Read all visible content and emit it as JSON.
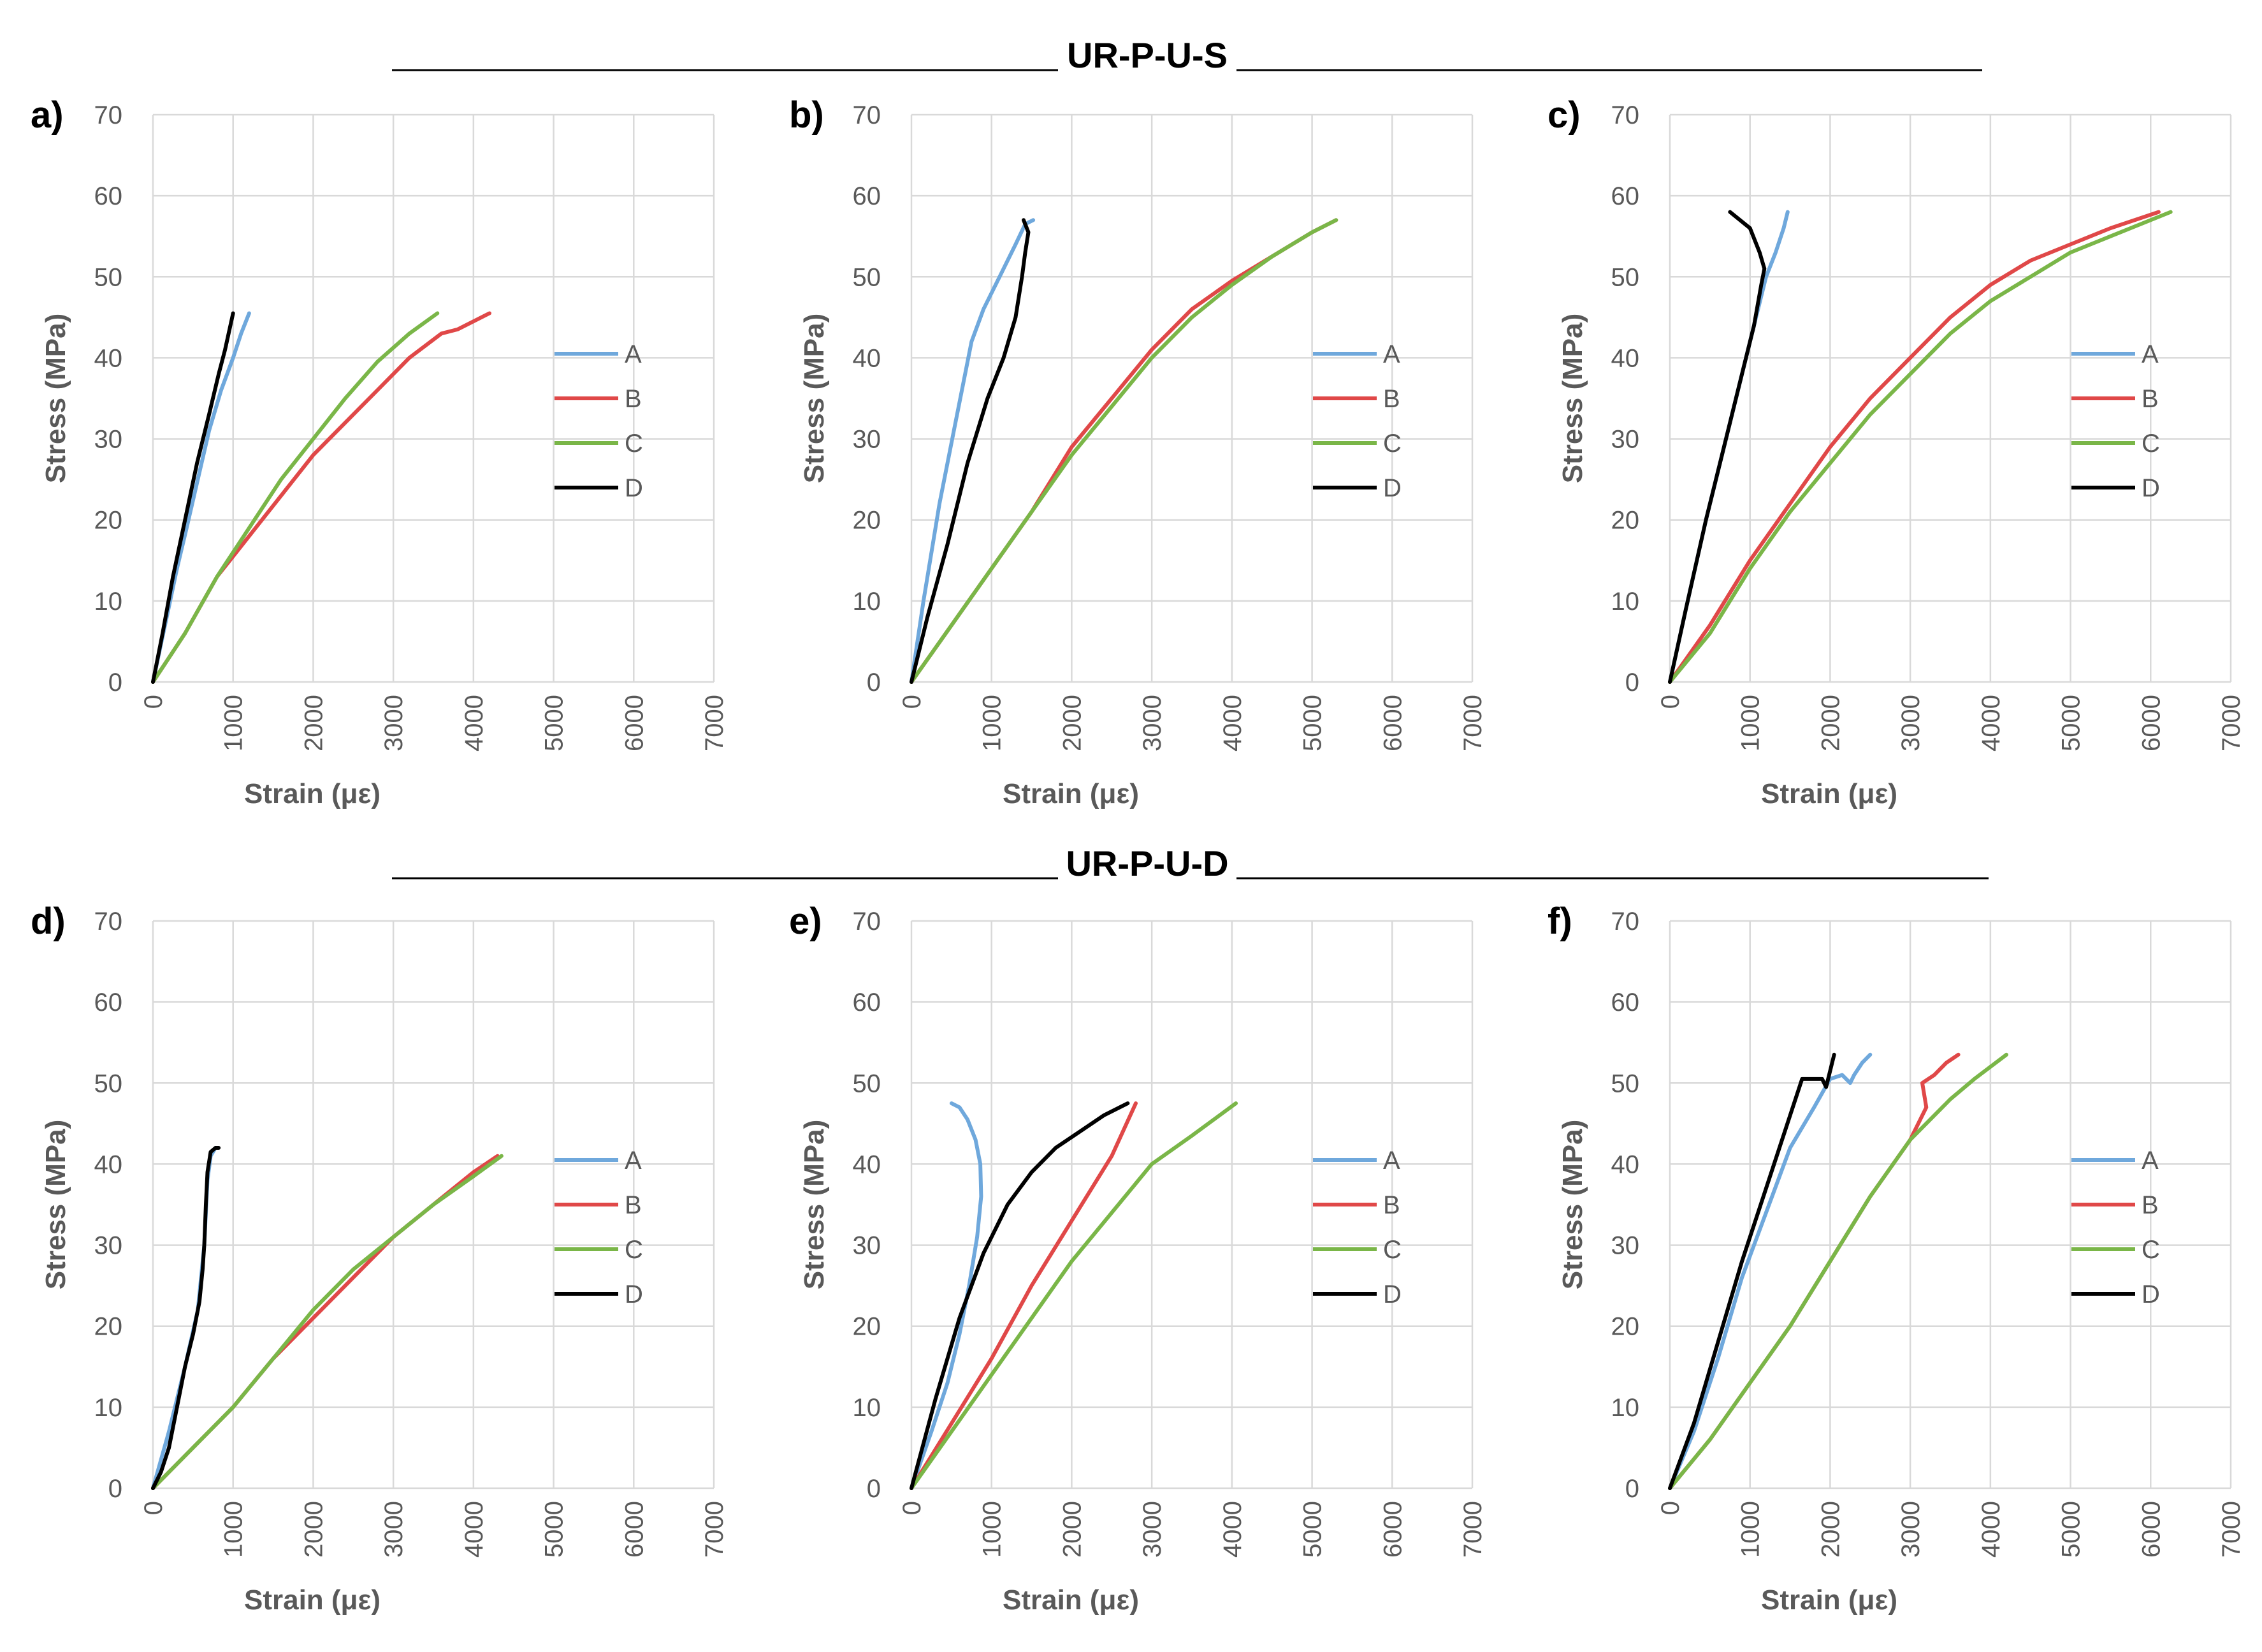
{
  "figure": {
    "groups": [
      {
        "title": "UR-P-U-S",
        "panels": [
          0,
          1,
          2
        ]
      },
      {
        "title": "UR-P-U-D",
        "panels": [
          3,
          4,
          5
        ]
      }
    ],
    "legend_labels": [
      "A",
      "B",
      "C",
      "D"
    ],
    "series_colors": {
      "A": "#6fa8dc",
      "B": "#e04848",
      "C": "#7ab648",
      "D": "#000000"
    }
  },
  "chart_data": [
    {
      "type": "line",
      "label": "a)",
      "xlabel": "Strain (με)",
      "ylabel": "Stress (MPa)",
      "xlim": [
        0,
        7000
      ],
      "ylim": [
        0,
        70
      ],
      "xticks": [
        "0",
        "1000",
        "2000",
        "3000",
        "4000",
        "5000",
        "6000",
        "7000"
      ],
      "yticks": [
        "0",
        "10",
        "20",
        "30",
        "40",
        "50",
        "60",
        "70"
      ],
      "series": [
        {
          "name": "A",
          "x": [
            0,
            150,
            300,
            420,
            560,
            700,
            850,
            1000,
            1100,
            1200
          ],
          "y": [
            0,
            7,
            14,
            19,
            25,
            31,
            36,
            40,
            43,
            45.5
          ]
        },
        {
          "name": "B",
          "x": [
            0,
            400,
            800,
            1200,
            1600,
            2000,
            2400,
            2800,
            3200,
            3600,
            3800,
            4000,
            4200
          ],
          "y": [
            0,
            6,
            13,
            18,
            23,
            28,
            32,
            36,
            40,
            43,
            43.5,
            44.5,
            45.5
          ]
        },
        {
          "name": "C",
          "x": [
            0,
            400,
            800,
            1200,
            1600,
            2000,
            2400,
            2800,
            3200,
            3550
          ],
          "y": [
            0,
            6,
            13,
            19,
            25,
            30,
            35,
            39.5,
            43,
            45.5
          ]
        },
        {
          "name": "D",
          "x": [
            0,
            120,
            250,
            400,
            550,
            700,
            820,
            900,
            1000
          ],
          "y": [
            0,
            6,
            13,
            20,
            27,
            33,
            38,
            41,
            45.5
          ]
        }
      ]
    },
    {
      "type": "line",
      "label": "b)",
      "xlabel": "Strain (με)",
      "ylabel": "Stress (MPa)",
      "xlim": [
        0,
        7000
      ],
      "ylim": [
        0,
        70
      ],
      "xticks": [
        "0",
        "1000",
        "2000",
        "3000",
        "4000",
        "5000",
        "6000",
        "7000"
      ],
      "yticks": [
        "0",
        "10",
        "20",
        "30",
        "40",
        "50",
        "60",
        "70"
      ],
      "series": [
        {
          "name": "A",
          "x": [
            0,
            150,
            350,
            550,
            750,
            900,
            1100,
            1300,
            1420,
            1520
          ],
          "y": [
            0,
            10,
            22,
            32,
            42,
            46,
            50,
            54,
            56.5,
            57
          ]
        },
        {
          "name": "B",
          "x": [
            0,
            500,
            1000,
            1500,
            2000,
            2500,
            3000,
            3500,
            4000,
            4500,
            5000,
            5300
          ],
          "y": [
            0,
            7,
            14,
            21,
            29,
            35,
            41,
            46,
            49.5,
            52.5,
            55.5,
            57
          ]
        },
        {
          "name": "C",
          "x": [
            0,
            500,
            1000,
            1500,
            2000,
            2500,
            3000,
            3500,
            4000,
            4500,
            5000,
            5300
          ],
          "y": [
            0,
            7,
            14,
            21,
            28,
            34,
            40,
            45,
            49,
            52.5,
            55.5,
            57
          ]
        },
        {
          "name": "D",
          "x": [
            0,
            200,
            450,
            700,
            950,
            1150,
            1300,
            1380,
            1420,
            1460,
            1400
          ],
          "y": [
            0,
            8,
            17,
            27,
            35,
            40,
            45,
            50,
            53,
            55.5,
            57
          ]
        }
      ]
    },
    {
      "type": "line",
      "label": "c)",
      "xlabel": "Strain (με)",
      "ylabel": "Stress (MPa)",
      "xlim": [
        0,
        7000
      ],
      "ylim": [
        0,
        70
      ],
      "xticks": [
        "0",
        "1000",
        "2000",
        "3000",
        "4000",
        "5000",
        "6000",
        "7000"
      ],
      "yticks": [
        "0",
        "10",
        "20",
        "30",
        "40",
        "50",
        "60",
        "70"
      ],
      "series": [
        {
          "name": "A",
          "x": [
            0,
            200,
            450,
            700,
            900,
            1050,
            1200,
            1320,
            1420,
            1470
          ],
          "y": [
            0,
            9,
            20,
            30,
            38,
            44,
            50,
            53,
            56,
            58
          ]
        },
        {
          "name": "B",
          "x": [
            0,
            500,
            1000,
            1500,
            2000,
            2500,
            3000,
            3500,
            4000,
            4500,
            5000,
            5500,
            6100
          ],
          "y": [
            0,
            7,
            15,
            22,
            29,
            35,
            40,
            45,
            49,
            52,
            54,
            56,
            58
          ]
        },
        {
          "name": "C",
          "x": [
            0,
            500,
            1000,
            1500,
            2000,
            2500,
            3000,
            3500,
            4000,
            4500,
            5000,
            5500,
            6250
          ],
          "y": [
            0,
            6,
            14,
            21,
            27,
            33,
            38,
            43,
            47,
            50,
            53,
            55,
            58
          ]
        },
        {
          "name": "D",
          "x": [
            0,
            200,
            450,
            700,
            900,
            1050,
            1140,
            1180,
            1120,
            1000,
            750
          ],
          "y": [
            0,
            9,
            20,
            30,
            38,
            44,
            49,
            51,
            53,
            56,
            58
          ]
        }
      ]
    },
    {
      "type": "line",
      "label": "d)",
      "xlabel": "Strain (με)",
      "ylabel": "Stress (MPa)",
      "xlim": [
        0,
        7000
      ],
      "ylim": [
        0,
        70
      ],
      "xticks": [
        "0",
        "1000",
        "2000",
        "3000",
        "4000",
        "5000",
        "6000",
        "7000"
      ],
      "yticks": [
        "0",
        "10",
        "20",
        "30",
        "40",
        "50",
        "60",
        "70"
      ],
      "series": [
        {
          "name": "A",
          "x": [
            0,
            200,
            400,
            560,
            640,
            680,
            720,
            780
          ],
          "y": [
            0,
            7,
            15,
            22,
            30,
            38,
            41,
            42
          ]
        },
        {
          "name": "B",
          "x": [
            0,
            500,
            1000,
            1500,
            2000,
            2500,
            3000,
            3500,
            4000,
            4300
          ],
          "y": [
            0,
            5,
            10,
            16,
            21,
            26,
            31,
            35,
            39,
            41
          ]
        },
        {
          "name": "C",
          "x": [
            0,
            500,
            1000,
            1500,
            2000,
            2500,
            3000,
            3500,
            4000,
            4350
          ],
          "y": [
            0,
            5,
            10,
            16,
            22,
            27,
            31,
            35,
            38.5,
            41
          ]
        },
        {
          "name": "D",
          "x": [
            0,
            100,
            200,
            300,
            400,
            500,
            580,
            620,
            640,
            660,
            680,
            720,
            780,
            820
          ],
          "y": [
            0,
            2,
            5,
            10,
            15,
            19,
            23,
            27,
            30,
            35,
            39,
            41.5,
            42,
            42
          ]
        }
      ]
    },
    {
      "type": "line",
      "label": "e)",
      "xlabel": "Strain (με)",
      "ylabel": "Stress (MPa)",
      "xlim": [
        0,
        7000
      ],
      "ylim": [
        0,
        70
      ],
      "xticks": [
        "0",
        "1000",
        "2000",
        "3000",
        "4000",
        "5000",
        "6000",
        "7000"
      ],
      "yticks": [
        "0",
        "10",
        "20",
        "30",
        "40",
        "50",
        "60",
        "70"
      ],
      "series": [
        {
          "name": "A",
          "x": [
            0,
            250,
            450,
            600,
            720,
            820,
            870,
            860,
            800,
            700,
            600,
            500
          ],
          "y": [
            0,
            7,
            13,
            19,
            25,
            31,
            36,
            40,
            43,
            45.5,
            47,
            47.5
          ]
        },
        {
          "name": "B",
          "x": [
            0,
            500,
            1000,
            1500,
            2000,
            2500,
            2800
          ],
          "y": [
            0,
            8,
            16,
            25,
            33,
            41,
            47.5
          ]
        },
        {
          "name": "C",
          "x": [
            0,
            500,
            1000,
            1500,
            2000,
            2500,
            3000,
            3500,
            4050
          ],
          "y": [
            0,
            7,
            14,
            21,
            28,
            34,
            40,
            43.5,
            47.5
          ]
        },
        {
          "name": "D",
          "x": [
            0,
            300,
            600,
            900,
            1200,
            1500,
            1800,
            2100,
            2400,
            2700
          ],
          "y": [
            0,
            11,
            21,
            29,
            35,
            39,
            42,
            44,
            46,
            47.5
          ]
        }
      ]
    },
    {
      "type": "line",
      "label": "f)",
      "xlabel": "Strain (με)",
      "ylabel": "Stress (MPa)",
      "xlim": [
        0,
        7000
      ],
      "ylim": [
        0,
        70
      ],
      "xticks": [
        "0",
        "1000",
        "2000",
        "3000",
        "4000",
        "5000",
        "6000",
        "7000"
      ],
      "yticks": [
        "0",
        "10",
        "20",
        "30",
        "40",
        "50",
        "60",
        "70"
      ],
      "series": [
        {
          "name": "A",
          "x": [
            0,
            300,
            600,
            900,
            1200,
            1500,
            1800,
            2000,
            2150,
            2250,
            2300,
            2400,
            2500
          ],
          "y": [
            0,
            7,
            16,
            26,
            34,
            42,
            47,
            50.5,
            51,
            50,
            51,
            52.5,
            53.5
          ]
        },
        {
          "name": "B",
          "x": [
            0,
            500,
            1000,
            1500,
            2000,
            2500,
            3000,
            3200,
            3150,
            3300,
            3450,
            3600
          ],
          "y": [
            0,
            6,
            13,
            20,
            28,
            36,
            43,
            47,
            50,
            51,
            52.5,
            53.5
          ]
        },
        {
          "name": "C",
          "x": [
            0,
            500,
            1000,
            1500,
            2000,
            2500,
            3000,
            3500,
            3800,
            4200
          ],
          "y": [
            0,
            6,
            13,
            20,
            28,
            36,
            43,
            48,
            50.5,
            53.5
          ]
        },
        {
          "name": "D",
          "x": [
            0,
            300,
            600,
            900,
            1200,
            1500,
            1650,
            1800,
            1900,
            1950,
            2050
          ],
          "y": [
            0,
            8,
            18,
            28,
            37,
            46,
            50.5,
            50.5,
            50.5,
            49.5,
            53.5
          ]
        }
      ]
    }
  ]
}
